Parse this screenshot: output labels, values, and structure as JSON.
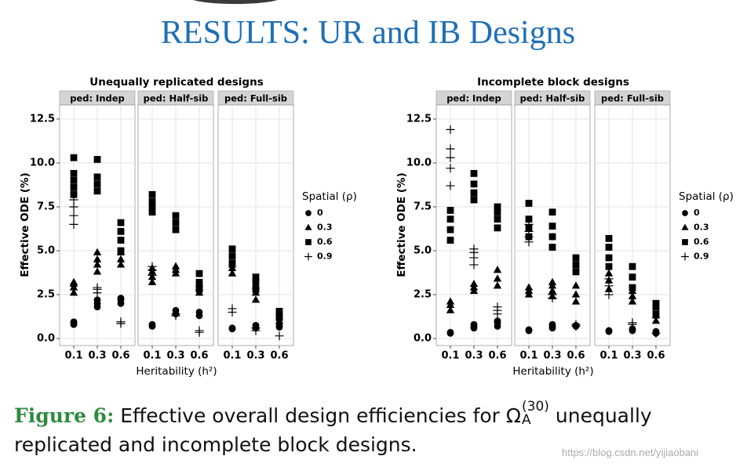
{
  "heading": "RESULTS: UR and IB Designs",
  "caption": {
    "label": "Figure 6:",
    "text_before": "Effective overall design efficiencies for",
    "symbol": "Ω",
    "subscript": "A",
    "superscript": "(30)",
    "text_after": "unequally",
    "line2": "replicated and incomplete block designs."
  },
  "watermark": "https://blog.csdn.net/yijiaobani",
  "chart_data": [
    {
      "type": "scatter",
      "title": "Unequally replicated designs",
      "categories": [
        "0.1",
        "0.3",
        "0.6"
      ],
      "x_label": "Heritability (h²)",
      "y_label": "Effective ODE (%)",
      "ylim": [
        -0.4,
        13.3
      ],
      "yticks": [
        {
          "value": 0,
          "label": "0.0"
        },
        2.5,
        {
          "value": 5,
          "label": "5.0"
        },
        7.5,
        {
          "value": 10,
          "label": "10.0"
        },
        12.5
      ],
      "grid": true,
      "legend_title": "Spatial (ρ)",
      "series": [
        {
          "name": "0",
          "color": "#000000",
          "shape": "circle"
        },
        {
          "name": "0.3",
          "color": "#000000",
          "shape": "triangle"
        },
        {
          "name": "0.6",
          "color": "#000000",
          "shape": "square"
        },
        {
          "name": "0.9",
          "color": "#000000",
          "shape": "plus"
        }
      ],
      "facets": [
        {
          "label": "ped: Indep",
          "values": [
            [
              [
                0.8,
                0.9,
                0.95
              ],
              [
                1.8,
                2.0,
                2.2
              ],
              [
                2.0,
                2.2,
                2.3
              ]
            ],
            [
              [
                2.6,
                2.9,
                3.1,
                3.2
              ],
              [
                3.8,
                4.2,
                4.5,
                4.9
              ],
              [
                4.2,
                4.5,
                4.9
              ]
            ],
            [
              [
                8.2,
                8.6,
                9.0,
                9.4,
                10.3
              ],
              [
                8.4,
                8.8,
                9.2,
                10.2
              ],
              [
                5.0,
                5.6,
                6.1,
                6.6
              ]
            ],
            [
              [
                6.5,
                7.0,
                7.5,
                7.9
              ],
              [
                2.6,
                2.8,
                2.9
              ],
              [
                0.85,
                0.95
              ]
            ]
          ]
        },
        {
          "label": "ped: Half-sib",
          "values": [
            [
              [
                0.7,
                0.8
              ],
              [
                1.4,
                1.6
              ],
              [
                1.3,
                1.5
              ]
            ],
            [
              [
                3.2,
                3.5,
                3.8,
                4.0
              ],
              [
                3.7,
                3.9,
                4.1
              ],
              [
                2.6,
                2.9,
                3.1
              ]
            ],
            [
              [
                7.2,
                7.5,
                7.8,
                8.2
              ],
              [
                6.2,
                6.6,
                7.0
              ],
              [
                2.8,
                3.2,
                3.7
              ]
            ],
            [
              [
                3.6,
                3.9,
                4.1
              ],
              [
                1.3,
                1.4
              ],
              [
                0.35,
                0.45
              ]
            ]
          ]
        },
        {
          "label": "ped: Full-sib",
          "values": [
            [
              [
                0.55,
                0.6
              ],
              [
                0.6,
                0.75
              ],
              [
                0.65,
                0.75
              ]
            ],
            [
              [
                3.7,
                4.0,
                4.2
              ],
              [
                2.2,
                2.6,
                3.0
              ],
              [
                1.0,
                1.2
              ]
            ],
            [
              [
                4.3,
                4.7,
                5.1
              ],
              [
                2.8,
                3.2,
                3.5
              ],
              [
                1.2,
                1.4,
                1.55
              ]
            ],
            [
              [
                1.5,
                1.7
              ],
              [
                0.45,
                0.6
              ],
              [
                0.15
              ]
            ]
          ]
        }
      ]
    },
    {
      "type": "scatter",
      "title": "Incomplete block designs",
      "categories": [
        "0.1",
        "0.3",
        "0.6"
      ],
      "x_label": "Heritability (h²)",
      "y_label": "Effective ODE (%)",
      "ylim": [
        -0.4,
        13.3
      ],
      "yticks": [
        {
          "value": 0,
          "label": "0.0"
        },
        2.5,
        {
          "value": 5,
          "label": "5.0"
        },
        7.5,
        {
          "value": 10,
          "label": "10.0"
        },
        12.5
      ],
      "grid": true,
      "legend_title": "Spatial (ρ)",
      "series": [
        {
          "name": "0",
          "color": "#000000",
          "shape": "circle"
        },
        {
          "name": "0.3",
          "color": "#000000",
          "shape": "triangle"
        },
        {
          "name": "0.6",
          "color": "#000000",
          "shape": "square"
        },
        {
          "name": "0.9",
          "color": "#000000",
          "shape": "plus"
        }
      ],
      "facets": [
        {
          "label": "ped: Indep",
          "values": [
            [
              [
                0.3,
                0.35
              ],
              [
                0.6,
                0.7,
                0.8
              ],
              [
                0.7,
                0.9,
                1.0
              ]
            ],
            [
              [
                1.6,
                1.9,
                2.1
              ],
              [
                2.7,
                2.9,
                3.1
              ],
              [
                3.0,
                3.4,
                3.9
              ]
            ],
            [
              [
                5.6,
                6.2,
                6.8,
                7.3
              ],
              [
                7.9,
                8.3,
                8.8,
                9.4
              ],
              [
                6.3,
                6.8,
                7.2,
                7.5
              ]
            ],
            [
              [
                8.7,
                9.7,
                10.3,
                10.8,
                11.9
              ],
              [
                4.2,
                4.6,
                4.9,
                5.1
              ],
              [
                1.4,
                1.6,
                1.8
              ]
            ]
          ]
        },
        {
          "label": "ped: Half-sib",
          "values": [
            [
              [
                0.45,
                0.5
              ],
              [
                0.6,
                0.7,
                0.8
              ],
              [
                0.7,
                0.75
              ]
            ],
            [
              [
                2.5,
                2.7,
                2.9
              ],
              [
                2.4,
                2.7,
                3.0,
                3.2
              ],
              [
                2.1,
                2.5,
                3.0
              ]
            ],
            [
              [
                5.8,
                6.3,
                6.8,
                7.7
              ],
              [
                5.2,
                5.8,
                6.4,
                7.2
              ],
              [
                3.8,
                4.2,
                4.6
              ]
            ],
            [
              [
                5.5,
                5.8,
                6.1,
                6.5
              ],
              [
                2.3,
                2.5
              ],
              [
                0.7,
                0.8
              ]
            ]
          ]
        },
        {
          "label": "ped: Full-sib",
          "values": [
            [
              [
                0.4,
                0.45
              ],
              [
                0.45,
                0.55
              ],
              [
                0.3,
                0.4
              ]
            ],
            [
              [
                2.8,
                3.3,
                3.7
              ],
              [
                2.1,
                2.4,
                2.7
              ],
              [
                1.0,
                1.3
              ]
            ],
            [
              [
                4.1,
                4.6,
                5.2,
                5.7
              ],
              [
                2.9,
                3.5,
                4.1
              ],
              [
                1.4,
                1.8,
                2.0
              ]
            ],
            [
              [
                2.5,
                3.0,
                3.4
              ],
              [
                0.8,
                0.9
              ],
              [
                0.3
              ]
            ]
          ]
        }
      ]
    }
  ]
}
